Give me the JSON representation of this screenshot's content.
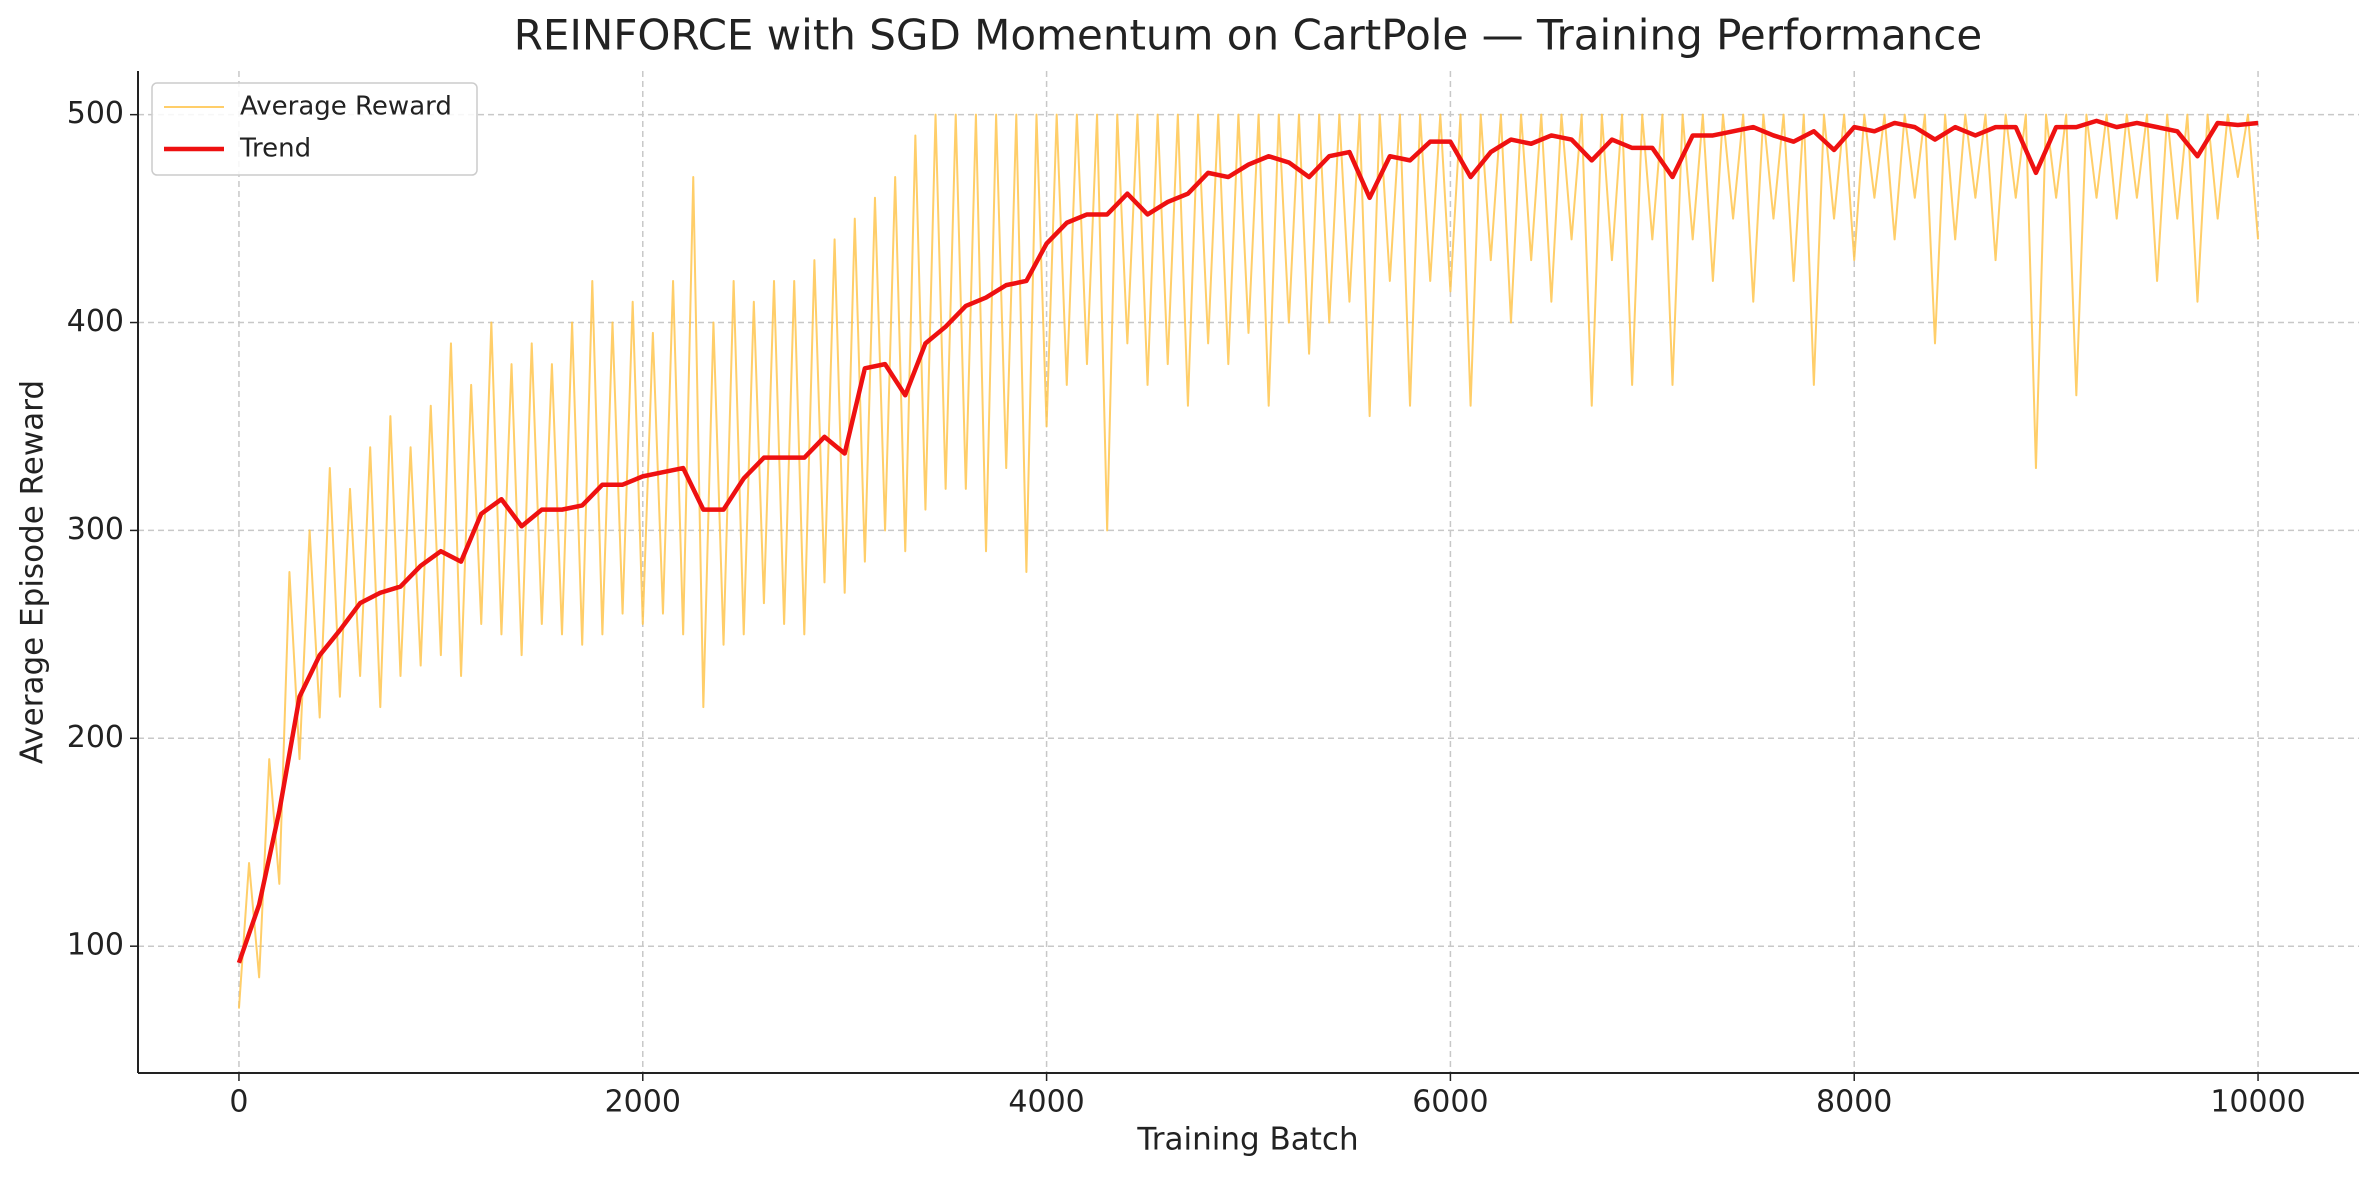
{
  "chart_data": {
    "type": "line",
    "title": "REINFORCE with SGD Momentum on CartPole — Training Performance",
    "xlabel": "Training Batch",
    "ylabel": "Average Episode Reward",
    "xlim": [
      -500,
      10500
    ],
    "ylim": [
      39,
      521
    ],
    "xticks": [
      0,
      2000,
      4000,
      6000,
      8000,
      10000
    ],
    "yticks": [
      100,
      200,
      300,
      400,
      500
    ],
    "grid": true,
    "legend": "upper left",
    "series": [
      {
        "name": "Average Reward",
        "color": "#ffc64f",
        "width": 2,
        "opacity": 0.85,
        "x": [
          0,
          50,
          100,
          150,
          200,
          250,
          300,
          350,
          400,
          450,
          500,
          550,
          600,
          650,
          700,
          750,
          800,
          850,
          900,
          950,
          1000,
          1050,
          1100,
          1150,
          1200,
          1250,
          1300,
          1350,
          1400,
          1450,
          1500,
          1550,
          1600,
          1650,
          1700,
          1750,
          1800,
          1850,
          1900,
          1950,
          2000,
          2050,
          2100,
          2150,
          2200,
          2250,
          2300,
          2350,
          2400,
          2450,
          2500,
          2550,
          2600,
          2650,
          2700,
          2750,
          2800,
          2850,
          2900,
          2950,
          3000,
          3050,
          3100,
          3150,
          3200,
          3250,
          3300,
          3350,
          3400,
          3450,
          3500,
          3550,
          3600,
          3650,
          3700,
          3750,
          3800,
          3850,
          3900,
          3950,
          4000,
          4050,
          4100,
          4150,
          4200,
          4250,
          4300,
          4350,
          4400,
          4450,
          4500,
          4550,
          4600,
          4650,
          4700,
          4750,
          4800,
          4850,
          4900,
          4950,
          5000,
          5050,
          5100,
          5150,
          5200,
          5250,
          5300,
          5350,
          5400,
          5450,
          5500,
          5550,
          5600,
          5650,
          5700,
          5750,
          5800,
          5850,
          5900,
          5950,
          6000,
          6050,
          6100,
          6150,
          6200,
          6250,
          6300,
          6350,
          6400,
          6450,
          6500,
          6550,
          6600,
          6650,
          6700,
          6750,
          6800,
          6850,
          6900,
          6950,
          7000,
          7050,
          7100,
          7150,
          7200,
          7250,
          7300,
          7350,
          7400,
          7450,
          7500,
          7550,
          7600,
          7650,
          7700,
          7750,
          7800,
          7850,
          7900,
          7950,
          8000,
          8050,
          8100,
          8150,
          8200,
          8250,
          8300,
          8350,
          8400,
          8450,
          8500,
          8550,
          8600,
          8650,
          8700,
          8750,
          8800,
          8850,
          8900,
          8950,
          9000,
          9050,
          9100,
          9150,
          9200,
          9250,
          9300,
          9350,
          9400,
          9450,
          9500,
          9550,
          9600,
          9650,
          9700,
          9750,
          9800,
          9850,
          9900,
          9950,
          10000
        ],
        "values": [
          70,
          140,
          85,
          190,
          130,
          280,
          190,
          300,
          210,
          330,
          220,
          320,
          230,
          340,
          215,
          355,
          230,
          340,
          235,
          360,
          240,
          390,
          230,
          370,
          255,
          400,
          250,
          380,
          240,
          390,
          255,
          380,
          250,
          400,
          245,
          420,
          250,
          400,
          260,
          410,
          255,
          395,
          260,
          420,
          250,
          470,
          215,
          400,
          245,
          420,
          250,
          410,
          265,
          420,
          255,
          420,
          250,
          430,
          275,
          440,
          270,
          450,
          285,
          460,
          300,
          470,
          290,
          490,
          310,
          500,
          320,
          500,
          320,
          500,
          290,
          500,
          330,
          500,
          280,
          500,
          350,
          500,
          370,
          500,
          380,
          500,
          300,
          500,
          390,
          500,
          370,
          500,
          380,
          500,
          360,
          500,
          390,
          500,
          380,
          500,
          395,
          500,
          360,
          500,
          400,
          500,
          385,
          500,
          400,
          500,
          410,
          500,
          355,
          500,
          420,
          500,
          360,
          500,
          420,
          500,
          415,
          500,
          360,
          500,
          430,
          500,
          400,
          500,
          430,
          500,
          410,
          500,
          440,
          500,
          360,
          500,
          430,
          500,
          370,
          500,
          440,
          500,
          370,
          500,
          440,
          500,
          420,
          500,
          450,
          500,
          410,
          500,
          450,
          500,
          420,
          500,
          370,
          500,
          450,
          500,
          430,
          500,
          460,
          500,
          440,
          500,
          460,
          500,
          390,
          500,
          440,
          500,
          460,
          500,
          430,
          500,
          460,
          500,
          330,
          500,
          460,
          500,
          365,
          500,
          460,
          500,
          450,
          500,
          460,
          500,
          420,
          500,
          450,
          500,
          410,
          500,
          450,
          500,
          470,
          500,
          440
        ]
      },
      {
        "name": "Trend",
        "color": "#ee1111",
        "width": 4.5,
        "opacity": 1,
        "x": [
          0,
          100,
          200,
          300,
          400,
          500,
          600,
          700,
          800,
          900,
          1000,
          1100,
          1200,
          1300,
          1400,
          1500,
          1600,
          1700,
          1800,
          1900,
          2000,
          2100,
          2200,
          2300,
          2400,
          2500,
          2600,
          2700,
          2800,
          2900,
          3000,
          3100,
          3200,
          3300,
          3400,
          3500,
          3600,
          3700,
          3800,
          3900,
          4000,
          4100,
          4200,
          4300,
          4400,
          4500,
          4600,
          4700,
          4800,
          4900,
          5000,
          5100,
          5200,
          5300,
          5400,
          5500,
          5600,
          5700,
          5800,
          5900,
          6000,
          6100,
          6200,
          6300,
          6400,
          6500,
          6600,
          6700,
          6800,
          6900,
          7000,
          7100,
          7200,
          7300,
          7400,
          7500,
          7600,
          7700,
          7800,
          7900,
          8000,
          8100,
          8200,
          8300,
          8400,
          8500,
          8600,
          8700,
          8800,
          8900,
          9000,
          9100,
          9200,
          9300,
          9400,
          9500,
          9600,
          9700,
          9800,
          9900,
          10000
        ],
        "values": [
          92,
          120,
          165,
          220,
          240,
          252,
          265,
          270,
          273,
          283,
          290,
          285,
          308,
          315,
          302,
          310,
          310,
          312,
          322,
          322,
          326,
          328,
          330,
          310,
          310,
          325,
          335,
          335,
          335,
          345,
          337,
          378,
          380,
          365,
          390,
          398,
          408,
          412,
          418,
          420,
          438,
          448,
          452,
          452,
          462,
          452,
          458,
          462,
          472,
          470,
          476,
          480,
          477,
          470,
          480,
          482,
          460,
          480,
          478,
          487,
          487,
          470,
          482,
          488,
          486,
          490,
          488,
          478,
          488,
          484,
          484,
          470,
          490,
          490,
          492,
          494,
          490,
          487,
          492,
          483,
          494,
          492,
          496,
          494,
          488,
          494,
          490,
          494,
          494,
          472,
          494,
          494,
          497,
          494,
          496,
          494,
          492,
          480,
          496,
          495,
          496
        ]
      }
    ]
  }
}
